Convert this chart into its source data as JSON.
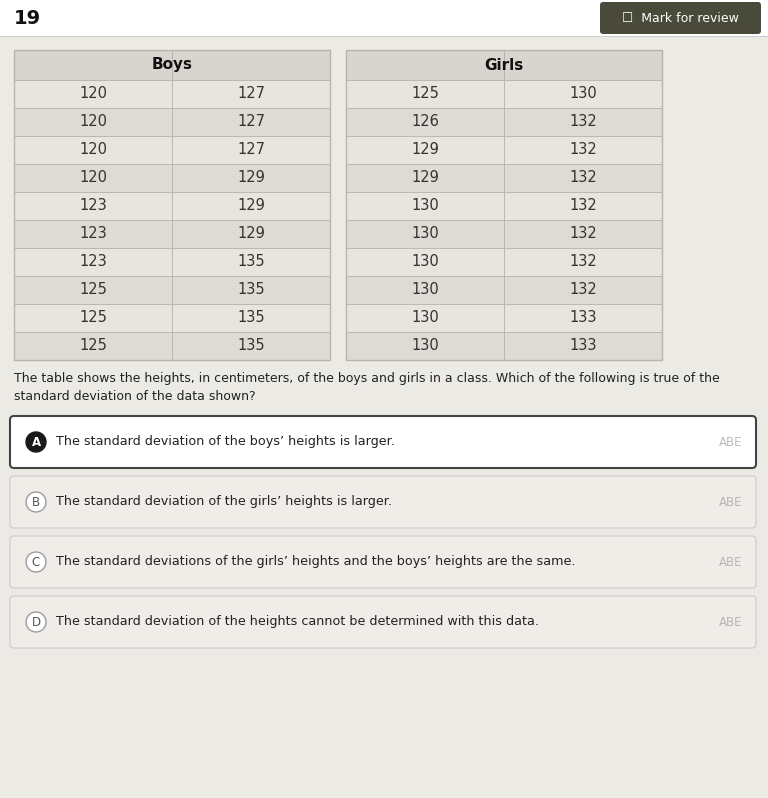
{
  "question_number": "19",
  "mark_for_review": "Mark for review",
  "boys_col1": [
    120,
    120,
    120,
    120,
    123,
    123,
    123,
    125,
    125,
    125
  ],
  "boys_col2": [
    127,
    127,
    127,
    129,
    129,
    129,
    135,
    135,
    135,
    135
  ],
  "girls_col1": [
    125,
    126,
    129,
    129,
    130,
    130,
    130,
    130,
    130,
    130
  ],
  "girls_col2": [
    130,
    132,
    132,
    132,
    132,
    132,
    132,
    132,
    133,
    133
  ],
  "boys_header": "Boys",
  "girls_header": "Girls",
  "prompt_text": "The table shows the heights, in centimeters, of the boys and girls in a class. Which of the following is true of the\nstandard deviation of the data shown?",
  "options": [
    {
      "label": "A",
      "text": "The standard deviation of the boys’ heights is larger.",
      "tag": "ABE",
      "selected": true
    },
    {
      "label": "B",
      "text": "The standard deviation of the girls’ heights is larger.",
      "tag": "ABE",
      "selected": false
    },
    {
      "label": "C",
      "text": "The standard deviations of the girls’ heights and the boys’ heights are the same.",
      "tag": "ABE",
      "selected": false
    },
    {
      "label": "D",
      "text": "The standard deviation of the heights cannot be determined with this data.",
      "tag": "ABE",
      "selected": false
    }
  ],
  "bg_color": "#eceae4",
  "cell_bg_light": "#e8e5de",
  "cell_bg_dark": "#dedbd4",
  "header_bg": "#d8d5ce",
  "border_color": "#b8b5ae",
  "text_color": "#2a2a2a",
  "selected_option_bg": "#ffffff",
  "unselected_option_bg": "#f0ede8",
  "selected_border": "#444444",
  "unselected_border": "#cccccc",
  "tag_color": "#aaaaaa",
  "mark_bg": "#4a4a3a",
  "top_bar_bg": "#ffffff"
}
